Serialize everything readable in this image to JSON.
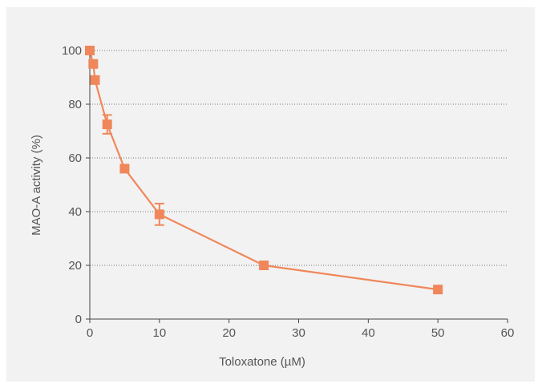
{
  "chart_data": {
    "type": "scatter",
    "title": "",
    "xlabel": "Toloxatone (µM)",
    "ylabel": "MAO-A activity (%)",
    "xlim": [
      0,
      60
    ],
    "ylim": [
      0,
      100
    ],
    "xticks": [
      0,
      10,
      20,
      30,
      40,
      50,
      60
    ],
    "yticks": [
      0,
      20,
      40,
      60,
      80,
      100
    ],
    "grid": "horizontal-dotted",
    "series": [
      {
        "color": "#f0875a",
        "marker": "square",
        "connected": true,
        "x": [
          0,
          0.5,
          0.75,
          2.5,
          5,
          10,
          25,
          50
        ],
        "y": [
          100,
          95,
          89,
          72.5,
          56,
          39,
          20,
          11
        ],
        "err": [
          0,
          0,
          0,
          3.5,
          0,
          4,
          0,
          0
        ]
      }
    ]
  }
}
